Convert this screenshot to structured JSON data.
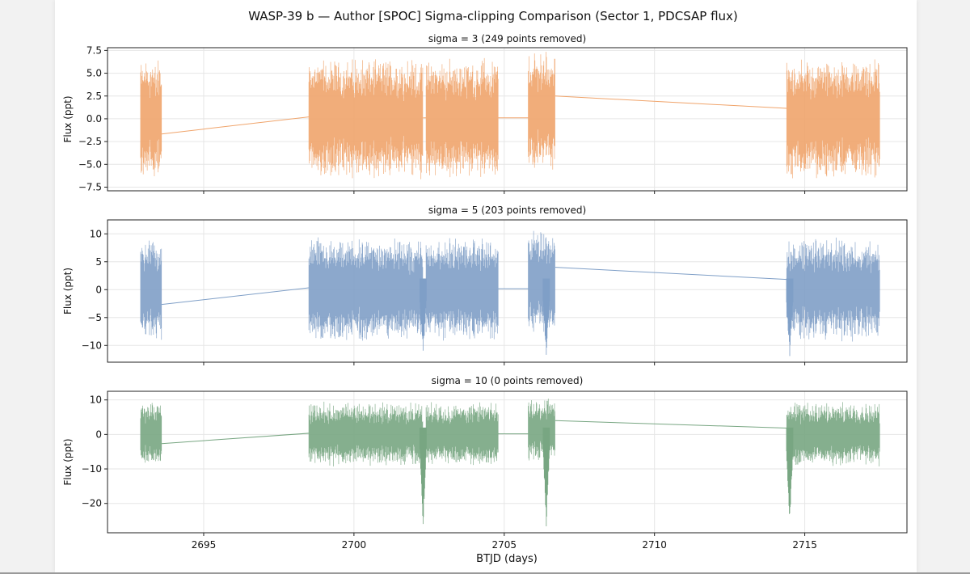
{
  "chart_data": {
    "type": "line",
    "title": "WASP-39 b — Author [SPOC] Sigma-clipping Comparison (Sector 1, PDCSAP flux)",
    "xlabel": "BTJD (days)",
    "xlim": [
      2691.8,
      2718.4
    ],
    "xticks": [
      2695,
      2700,
      2705,
      2710,
      2715
    ],
    "segments": [
      [
        2692.9,
        2693.6
      ],
      [
        2698.5,
        2702.3
      ],
      [
        2702.4,
        2704.8
      ],
      [
        2705.8,
        2706.7
      ],
      [
        2714.4,
        2717.5
      ]
    ],
    "transits": [
      2702.3,
      2706.4,
      2714.5
    ],
    "panels": [
      {
        "subtitle": "sigma = 3  (249 points removed)",
        "ylabel": "Flux (ppt)",
        "ylim": [
          -7.9,
          7.8
        ],
        "yticks": [
          7.5,
          5.0,
          2.5,
          0.0,
          -2.5,
          -5.0,
          -7.5
        ],
        "yticklabels": [
          "7.5",
          "5.0",
          "2.5",
          "0.0",
          "−2.5",
          "−5.0",
          "−7.5"
        ],
        "color": "#f0a46b",
        "noise_amp": 6.8,
        "transit_depth": 0
      },
      {
        "subtitle": "sigma = 5  (203 points removed)",
        "ylabel": "Flux (ppt)",
        "ylim": [
          -13,
          12.5
        ],
        "yticks": [
          10,
          5,
          0,
          -5,
          -10
        ],
        "yticklabels": [
          "10",
          "5",
          "0",
          "−5",
          "−10"
        ],
        "color": "#7f9fc7",
        "noise_amp": 9.5,
        "transit_depth": -12
      },
      {
        "subtitle": "sigma = 10  (0 points removed)",
        "ylabel": "Flux (ppt)",
        "ylim": [
          -28.5,
          12.5
        ],
        "yticks": [
          10,
          0,
          -10,
          -20
        ],
        "yticklabels": [
          "10",
          "0",
          "−10",
          "−20"
        ],
        "color": "#78a682",
        "noise_amp": 9.5,
        "transit_depth": -27
      }
    ]
  }
}
